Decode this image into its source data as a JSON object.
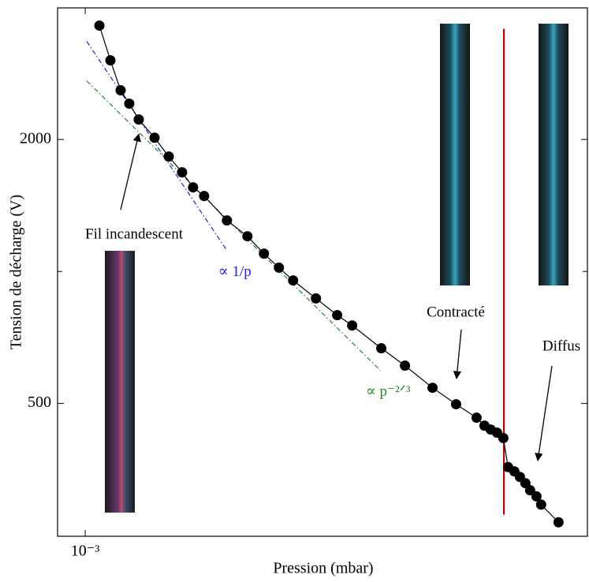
{
  "chart_data": {
    "type": "line",
    "x_label": "Pression (mbar)",
    "y_label": "Tension de décharge (V)",
    "x_log": true,
    "y_log": true,
    "xlim": [
      0.000806,
      0.0502
    ],
    "ylim": [
      249,
      3990
    ],
    "xticks": [
      {
        "value": 0.001,
        "label": "10⁻³"
      }
    ],
    "yticks": [
      500,
      2000
    ],
    "y_minor_ticks": [
      1000
    ],
    "series": [
      {
        "color": "#000000",
        "x": [
          0.001117,
          0.001217,
          0.001318,
          0.00141,
          0.001518,
          0.001717,
          0.001918,
          0.002128,
          0.002319,
          0.002527,
          0.00302,
          0.003543,
          0.00403,
          0.004529,
          0.005058,
          0.006044,
          0.007134,
          0.008017,
          0.01006,
          0.0121,
          0.015,
          0.01803,
          0.02115,
          0.02249,
          0.02362,
          0.02481,
          0.02606,
          0.02704,
          0.0284,
          0.02965,
          0.03095,
          0.03211,
          0.03373,
          0.03499,
          0.04007
        ],
        "values": [
          3636,
          3030,
          2588,
          2413,
          2221,
          2018,
          1828,
          1683,
          1555,
          1486,
          1307,
          1203,
          1098,
          1020,
          954,
          868,
          795,
          753,
          668,
          610,
          543,
          498,
          464,
          445,
          436,
          429,
          417,
          358,
          350,
          340,
          329,
          317,
          307,
          294,
          268
        ]
      }
    ],
    "reference_lines": [
      {
        "label": "∝ 1/p",
        "color": "#2222dd",
        "dash": "dashdot",
        "x": [
          0.001012,
          0.00302
        ],
        "y": [
          3346,
          1116
        ]
      },
      {
        "label": "∝ p⁻²ᐟ³",
        "color": "#228822",
        "dash": "dashdot",
        "x": [
          0.001012,
          0.00998
        ],
        "y": [
          2720,
          595
        ]
      },
      {
        "color": "#bb0000",
        "dash": "solid",
        "x": [
          0.02618,
          0.02618
        ],
        "y": [
          3575,
          279
        ]
      }
    ],
    "annotations": [
      {
        "text": "Fil incandescent"
      },
      {
        "text": "Contracté"
      },
      {
        "text": "Diffus"
      }
    ]
  }
}
